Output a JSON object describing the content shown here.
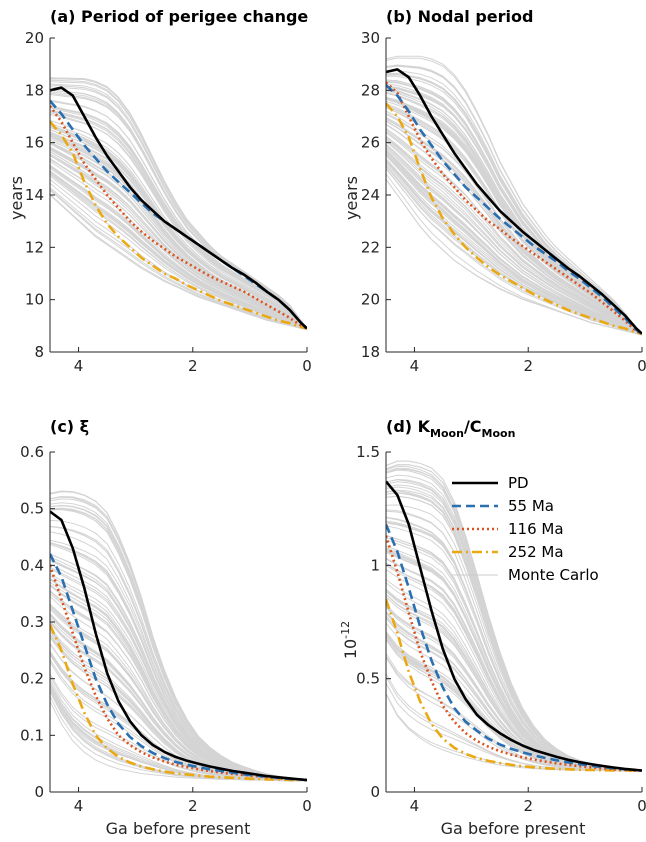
{
  "legend": [
    {
      "label": "PD",
      "color": "#000000",
      "dash": "solid"
    },
    {
      "label": "55 Ma",
      "color": "#2a6fb0",
      "dash": "dashed"
    },
    {
      "label": "116 Ma",
      "color": "#d9541e",
      "dash": "dotted"
    },
    {
      "label": "252 Ma",
      "color": "#eaa913",
      "dash": "dashdot"
    },
    {
      "label": "Monte Carlo",
      "color": "#cccccc",
      "dash": "thin"
    }
  ],
  "chart_data": [
    {
      "type": "line",
      "title": "(a) Period of perigee change",
      "xlabel": "",
      "ylabel": "years",
      "xlim": [
        4.5,
        0
      ],
      "ylim": [
        8,
        20
      ],
      "xticks": [
        "4",
        "2",
        "0"
      ],
      "yticks": [
        "8",
        "10",
        "12",
        "14",
        "16",
        "18",
        "20"
      ],
      "x": [
        4.5,
        4.3,
        4.1,
        3.9,
        3.7,
        3.5,
        3.3,
        3.1,
        2.9,
        2.7,
        2.5,
        2.3,
        2.1,
        1.9,
        1.7,
        1.5,
        1.3,
        1.1,
        0.9,
        0.7,
        0.5,
        0.3,
        0.1,
        0
      ],
      "series": [
        {
          "name": "PD",
          "values": [
            18.0,
            18.1,
            17.8,
            17.0,
            16.2,
            15.5,
            14.9,
            14.3,
            13.8,
            13.4,
            13.0,
            12.7,
            12.4,
            12.1,
            11.8,
            11.5,
            11.2,
            10.95,
            10.65,
            10.3,
            10.0,
            9.6,
            9.1,
            8.9
          ]
        },
        {
          "name": "55 Ma",
          "values": [
            17.6,
            17.1,
            16.5,
            15.9,
            15.4,
            14.9,
            14.5,
            14.1,
            13.7,
            13.3,
            13.0,
            12.7,
            12.4,
            12.1,
            11.8,
            11.5,
            11.2,
            10.9,
            10.6,
            10.3,
            10.0,
            9.6,
            9.1,
            8.9
          ]
        },
        {
          "name": "116 Ma",
          "values": [
            17.4,
            16.8,
            16.0,
            15.2,
            14.6,
            14.0,
            13.5,
            13.0,
            12.6,
            12.25,
            11.95,
            11.65,
            11.4,
            11.15,
            10.9,
            10.7,
            10.5,
            10.3,
            10.05,
            9.8,
            9.55,
            9.3,
            9.0,
            8.9
          ]
        },
        {
          "name": "252 Ma",
          "values": [
            16.8,
            16.3,
            15.6,
            14.5,
            13.6,
            12.9,
            12.4,
            12.0,
            11.6,
            11.3,
            11.0,
            10.8,
            10.55,
            10.35,
            10.15,
            9.95,
            9.8,
            9.65,
            9.5,
            9.35,
            9.2,
            9.1,
            8.95,
            8.9
          ]
        }
      ],
      "monte_carlo_band": {
        "upper": [
          18.5,
          18.5,
          18.5,
          18.5,
          18.4,
          18.2,
          17.8,
          17.2,
          16.4,
          15.5,
          14.6,
          13.8,
          13.1,
          12.6,
          12.1,
          11.7,
          11.4,
          11.1,
          10.8,
          10.5,
          10.2,
          9.8,
          9.2,
          8.9
        ],
        "lower": [
          14.0,
          13.6,
          13.2,
          12.8,
          12.4,
          12.1,
          11.8,
          11.5,
          11.2,
          10.95,
          10.7,
          10.5,
          10.3,
          10.1,
          9.95,
          9.8,
          9.65,
          9.5,
          9.35,
          9.2,
          9.1,
          9.0,
          8.9,
          8.85
        ]
      }
    },
    {
      "type": "line",
      "title": "(b) Nodal period",
      "xlabel": "",
      "ylabel": "years",
      "xlim": [
        4.5,
        0
      ],
      "ylim": [
        18,
        30
      ],
      "xticks": [
        "4",
        "2",
        "0"
      ],
      "yticks": [
        "18",
        "20",
        "22",
        "24",
        "26",
        "28",
        "30"
      ],
      "x": [
        4.5,
        4.3,
        4.1,
        3.9,
        3.7,
        3.5,
        3.3,
        3.1,
        2.9,
        2.7,
        2.5,
        2.3,
        2.1,
        1.9,
        1.7,
        1.5,
        1.3,
        1.1,
        0.9,
        0.7,
        0.5,
        0.3,
        0.1,
        0
      ],
      "series": [
        {
          "name": "PD",
          "values": [
            28.7,
            28.8,
            28.5,
            27.8,
            27.0,
            26.3,
            25.6,
            25.0,
            24.4,
            23.9,
            23.4,
            23.0,
            22.6,
            22.25,
            21.9,
            21.55,
            21.2,
            20.9,
            20.55,
            20.2,
            19.8,
            19.4,
            18.9,
            18.7
          ]
        },
        {
          "name": "55 Ma",
          "values": [
            28.2,
            27.8,
            27.2,
            26.5,
            25.9,
            25.3,
            24.8,
            24.3,
            23.9,
            23.5,
            23.1,
            22.75,
            22.4,
            22.05,
            21.75,
            21.45,
            21.1,
            20.8,
            20.45,
            20.1,
            19.7,
            19.3,
            18.85,
            18.7
          ]
        },
        {
          "name": "116 Ma",
          "values": [
            28.3,
            27.9,
            27.0,
            26.1,
            25.4,
            24.8,
            24.3,
            23.8,
            23.4,
            23.0,
            22.7,
            22.35,
            22.05,
            21.75,
            21.45,
            21.15,
            20.85,
            20.55,
            20.25,
            19.9,
            19.55,
            19.2,
            18.8,
            18.7
          ]
        },
        {
          "name": "252 Ma",
          "values": [
            27.5,
            27.0,
            26.2,
            25.0,
            23.9,
            23.1,
            22.5,
            22.0,
            21.6,
            21.25,
            20.95,
            20.7,
            20.45,
            20.2,
            20.0,
            19.8,
            19.6,
            19.45,
            19.3,
            19.15,
            19.0,
            18.9,
            18.75,
            18.7
          ]
        }
      ],
      "monte_carlo_band": {
        "upper": [
          29.2,
          29.3,
          29.3,
          29.3,
          29.2,
          29.0,
          28.6,
          28.0,
          27.2,
          26.3,
          25.3,
          24.5,
          23.7,
          23.1,
          22.5,
          22.0,
          21.6,
          21.2,
          20.8,
          20.4,
          20.0,
          19.5,
          18.9,
          18.7
        ],
        "lower": [
          24.6,
          24.0,
          23.4,
          22.8,
          22.3,
          21.9,
          21.5,
          21.2,
          20.9,
          20.65,
          20.4,
          20.2,
          20.0,
          19.85,
          19.7,
          19.55,
          19.4,
          19.25,
          19.1,
          19.0,
          18.9,
          18.8,
          18.7,
          18.65
        ]
      }
    },
    {
      "type": "line",
      "title": "(c) ξ",
      "xlabel": "Ga before present",
      "ylabel": "",
      "xlim": [
        4.5,
        0
      ],
      "ylim": [
        0,
        0.6
      ],
      "xticks": [
        "4",
        "2",
        "0"
      ],
      "yticks": [
        "0",
        "0.1",
        "0.2",
        "0.3",
        "0.4",
        "0.5",
        "0.6"
      ],
      "x": [
        4.5,
        4.3,
        4.1,
        3.9,
        3.7,
        3.5,
        3.3,
        3.1,
        2.9,
        2.7,
        2.5,
        2.3,
        2.1,
        1.9,
        1.7,
        1.5,
        1.3,
        1.1,
        0.9,
        0.7,
        0.5,
        0.3,
        0.1,
        0
      ],
      "series": [
        {
          "name": "PD",
          "values": [
            0.495,
            0.48,
            0.43,
            0.36,
            0.28,
            0.21,
            0.16,
            0.125,
            0.1,
            0.083,
            0.071,
            0.062,
            0.055,
            0.05,
            0.045,
            0.041,
            0.037,
            0.034,
            0.031,
            0.028,
            0.026,
            0.024,
            0.022,
            0.021
          ]
        },
        {
          "name": "55 Ma",
          "values": [
            0.42,
            0.38,
            0.32,
            0.26,
            0.2,
            0.155,
            0.12,
            0.097,
            0.081,
            0.069,
            0.06,
            0.053,
            0.048,
            0.044,
            0.04,
            0.037,
            0.034,
            0.031,
            0.029,
            0.027,
            0.025,
            0.023,
            0.022,
            0.021
          ]
        },
        {
          "name": "116 Ma",
          "values": [
            0.4,
            0.34,
            0.28,
            0.22,
            0.17,
            0.13,
            0.1,
            0.083,
            0.07,
            0.061,
            0.054,
            0.048,
            0.044,
            0.04,
            0.037,
            0.034,
            0.032,
            0.03,
            0.028,
            0.026,
            0.024,
            0.023,
            0.022,
            0.021
          ]
        },
        {
          "name": "252 Ma",
          "values": [
            0.295,
            0.25,
            0.19,
            0.14,
            0.1,
            0.077,
            0.062,
            0.052,
            0.045,
            0.04,
            0.036,
            0.033,
            0.031,
            0.029,
            0.027,
            0.026,
            0.025,
            0.024,
            0.023,
            0.022,
            0.022,
            0.021,
            0.021,
            0.021
          ]
        }
      ],
      "monte_carlo_band": {
        "upper": [
          0.53,
          0.535,
          0.535,
          0.53,
          0.52,
          0.5,
          0.46,
          0.41,
          0.35,
          0.28,
          0.22,
          0.17,
          0.13,
          0.1,
          0.08,
          0.065,
          0.053,
          0.045,
          0.038,
          0.032,
          0.028,
          0.025,
          0.022,
          0.021
        ],
        "lower": [
          0.16,
          0.12,
          0.09,
          0.07,
          0.056,
          0.047,
          0.04,
          0.036,
          0.032,
          0.03,
          0.028,
          0.026,
          0.025,
          0.024,
          0.023,
          0.022,
          0.022,
          0.021,
          0.021,
          0.021,
          0.02,
          0.02,
          0.02,
          0.02
        ]
      }
    },
    {
      "type": "line",
      "title": "(d) K",
      "title_sub1": "Moon",
      "title_mid": "/C",
      "title_sub2": "Moon",
      "xlabel": "Ga before present",
      "ylabel": "10",
      "ylabel_exp": "-12",
      "xlim": [
        4.5,
        0
      ],
      "ylim": [
        0,
        1.5
      ],
      "xticks": [
        "4",
        "2",
        "0"
      ],
      "yticks": [
        "0",
        "0.5",
        "1",
        "1.5"
      ],
      "x": [
        4.5,
        4.3,
        4.1,
        3.9,
        3.7,
        3.5,
        3.3,
        3.1,
        2.9,
        2.7,
        2.5,
        2.3,
        2.1,
        1.9,
        1.7,
        1.5,
        1.3,
        1.1,
        0.9,
        0.7,
        0.5,
        0.3,
        0.1,
        0
      ],
      "series": [
        {
          "name": "PD",
          "values": [
            1.37,
            1.31,
            1.18,
            0.99,
            0.8,
            0.63,
            0.5,
            0.41,
            0.34,
            0.295,
            0.26,
            0.23,
            0.205,
            0.185,
            0.17,
            0.155,
            0.142,
            0.132,
            0.123,
            0.115,
            0.108,
            0.102,
            0.097,
            0.095
          ]
        },
        {
          "name": "55 Ma",
          "values": [
            1.18,
            1.06,
            0.9,
            0.73,
            0.58,
            0.46,
            0.37,
            0.31,
            0.27,
            0.235,
            0.21,
            0.19,
            0.175,
            0.162,
            0.15,
            0.14,
            0.131,
            0.123,
            0.116,
            0.11,
            0.104,
            0.1,
            0.096,
            0.095
          ]
        },
        {
          "name": "116 Ma",
          "values": [
            1.13,
            0.97,
            0.79,
            0.62,
            0.49,
            0.38,
            0.31,
            0.26,
            0.225,
            0.2,
            0.18,
            0.165,
            0.153,
            0.143,
            0.134,
            0.126,
            0.12,
            0.114,
            0.109,
            0.104,
            0.1,
            0.097,
            0.095,
            0.094
          ]
        },
        {
          "name": "252 Ma",
          "values": [
            0.85,
            0.7,
            0.53,
            0.4,
            0.3,
            0.235,
            0.195,
            0.168,
            0.15,
            0.137,
            0.128,
            0.12,
            0.114,
            0.109,
            0.105,
            0.102,
            0.1,
            0.098,
            0.097,
            0.096,
            0.095,
            0.095,
            0.094,
            0.094
          ]
        }
      ],
      "monte_carlo_band": {
        "upper": [
          1.44,
          1.46,
          1.46,
          1.45,
          1.43,
          1.38,
          1.28,
          1.13,
          0.96,
          0.78,
          0.62,
          0.48,
          0.37,
          0.29,
          0.23,
          0.19,
          0.16,
          0.14,
          0.125,
          0.115,
          0.107,
          0.1,
          0.096,
          0.095
        ],
        "lower": [
          0.4,
          0.3,
          0.24,
          0.2,
          0.17,
          0.15,
          0.135,
          0.125,
          0.117,
          0.11,
          0.105,
          0.102,
          0.1,
          0.098,
          0.097,
          0.096,
          0.095,
          0.095,
          0.094,
          0.094,
          0.093,
          0.093,
          0.093,
          0.093
        ]
      }
    }
  ]
}
